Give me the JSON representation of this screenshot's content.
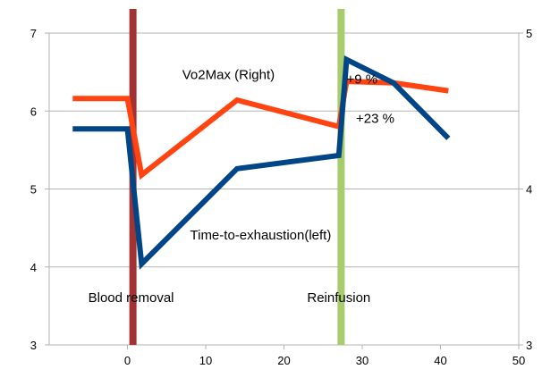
{
  "chart_data": {
    "type": "line",
    "title": "",
    "xlabel": "",
    "ylabel": "",
    "xlim": [
      -10,
      50
    ],
    "x_ticks": [
      0,
      10,
      20,
      30,
      40,
      50
    ],
    "y_left_lim": [
      3,
      7
    ],
    "y_left_ticks": [
      3,
      4,
      5,
      6,
      7
    ],
    "y_right_lim": [
      3,
      5
    ],
    "y_right_ticks": [
      3,
      4,
      5
    ],
    "grid": "horizontal",
    "series": [
      {
        "name": "Vo2Max (Right)",
        "axis": "right",
        "color": "#ff4411",
        "x": [
          -7,
          0,
          1.8,
          14,
          27,
          28,
          34,
          41
        ],
        "y": [
          4.58,
          4.58,
          4.09,
          4.57,
          4.4,
          4.69,
          4.68,
          4.63
        ]
      },
      {
        "name": "Time-to-exhaustion(left)",
        "axis": "left",
        "color": "#004586",
        "x": [
          -7,
          0,
          1.8,
          14,
          27,
          28,
          34,
          41
        ],
        "y": [
          5.77,
          5.77,
          4.04,
          5.26,
          5.43,
          6.66,
          6.36,
          5.65
        ]
      }
    ],
    "markers": [
      {
        "label": "Blood removal",
        "x": 0.7,
        "color": "#a33232"
      },
      {
        "label": "Reinfusion",
        "x": 27.3,
        "color": "#a6cc6e"
      }
    ],
    "annotations": [
      {
        "text": "+9 %",
        "x": 28,
        "y_left": 6.35
      },
      {
        "text": "+23 %",
        "x": 29.2,
        "y_left": 5.85
      }
    ],
    "series_labels": [
      {
        "series": 0,
        "x": 7,
        "y_left": 6.41
      },
      {
        "series": 1,
        "x": 8,
        "y_left": 4.35
      }
    ]
  }
}
